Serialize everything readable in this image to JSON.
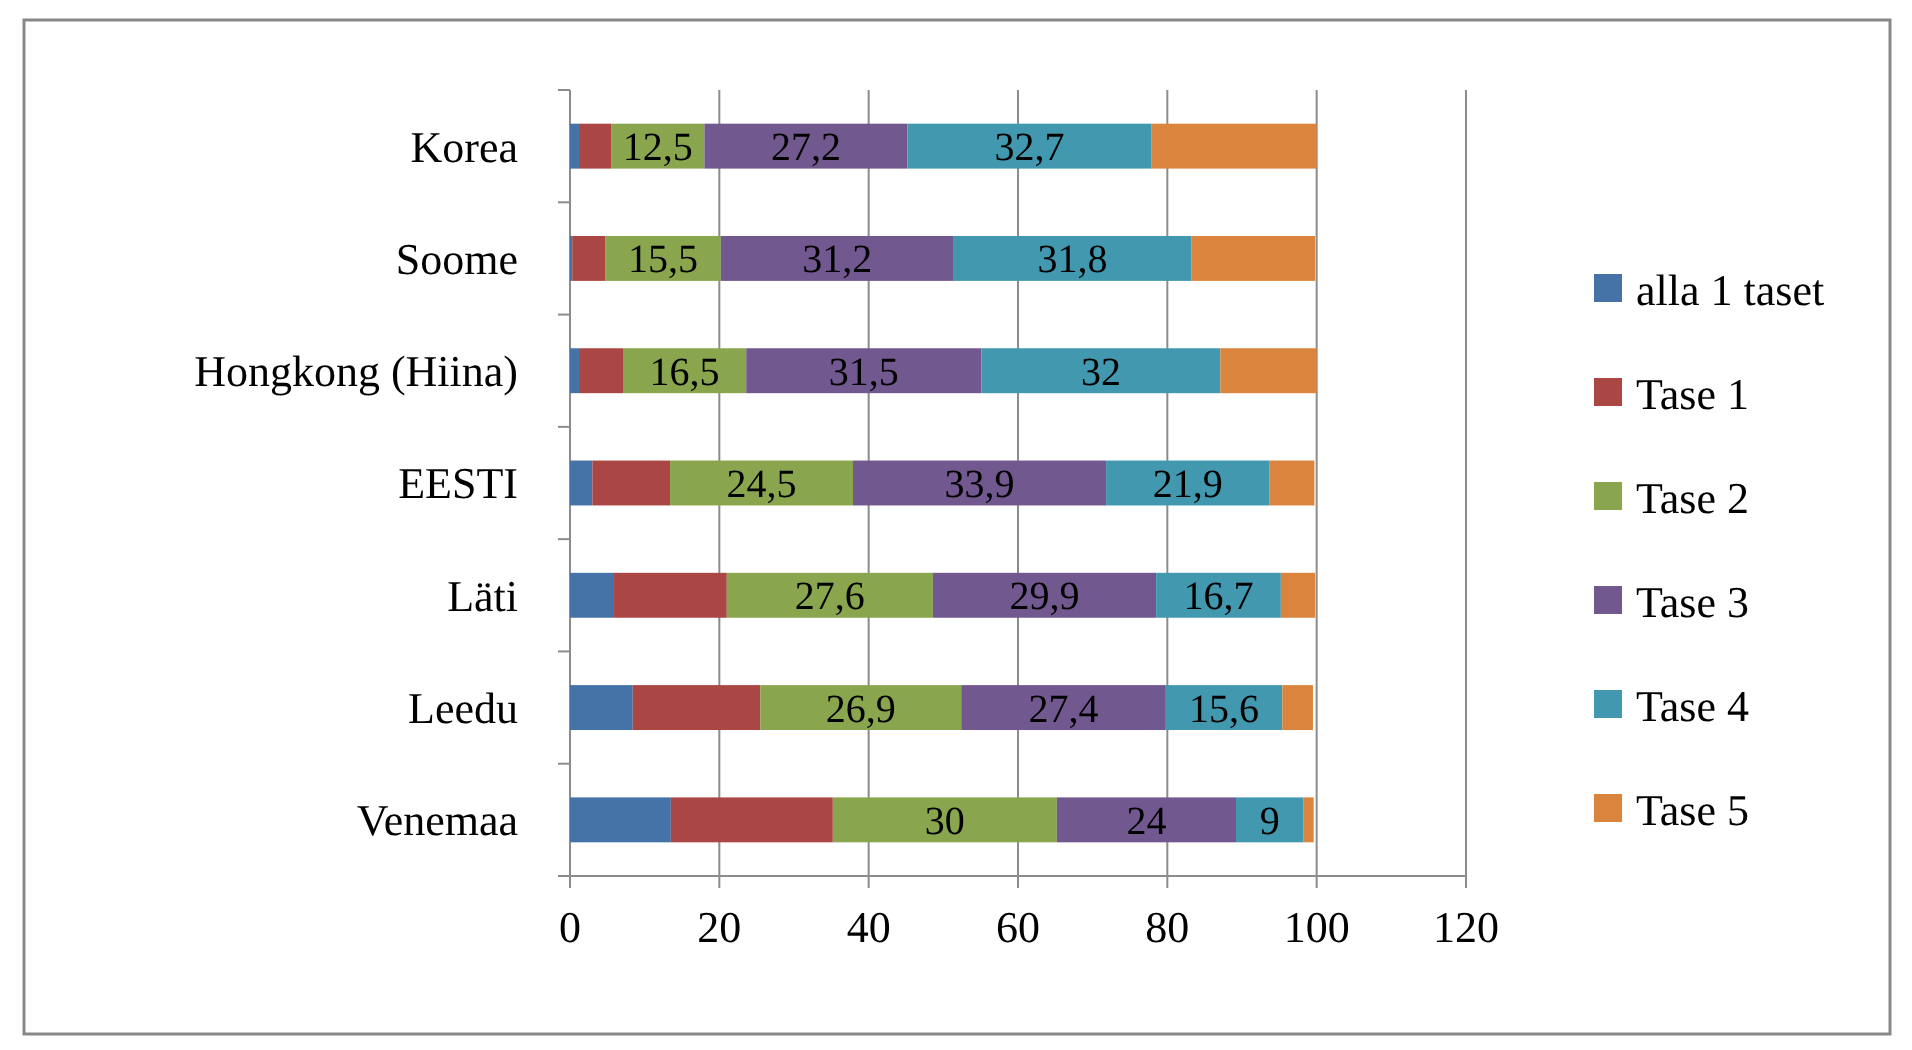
{
  "chart_data": {
    "type": "bar",
    "orientation": "horizontal",
    "stacked": true,
    "categories": [
      "Korea",
      "Soome",
      "Hongkong (Hiina)",
      "EESTI",
      "Läti",
      "Leedu",
      "Venemaa"
    ],
    "series": [
      {
        "name": "alla 1 taset",
        "color": "#4572a7",
        "values": [
          1.2,
          0.3,
          1.2,
          3.0,
          5.9,
          8.4,
          13.5
        ]
      },
      {
        "name": "Tase 1",
        "color": "#aa4643",
        "values": [
          4.3,
          4.4,
          5.9,
          10.4,
          15.1,
          17.1,
          21.7
        ]
      },
      {
        "name": "Tase 2",
        "color": "#89a54e",
        "values": [
          12.5,
          15.5,
          16.5,
          24.5,
          27.6,
          26.9,
          30
        ],
        "value_labels": [
          "12,5",
          "15,5",
          "16,5",
          "24,5",
          "27,6",
          "26,9",
          "30"
        ]
      },
      {
        "name": "Tase 3",
        "color": "#71588f",
        "values": [
          27.2,
          31.2,
          31.5,
          33.9,
          29.9,
          27.4,
          24
        ],
        "value_labels": [
          "27,2",
          "31,2",
          "31,5",
          "33,9",
          "29,9",
          "27,4",
          "24"
        ]
      },
      {
        "name": "Tase 4",
        "color": "#4198af",
        "values": [
          32.7,
          31.8,
          32,
          21.9,
          16.7,
          15.6,
          9
        ],
        "value_labels": [
          "32,7",
          "31,8",
          "32",
          "21,9",
          "16,7",
          "15,6",
          "9"
        ]
      },
      {
        "name": "Tase 5",
        "color": "#db843d",
        "values": [
          22.1,
          16.6,
          12.9,
          6.0,
          4.6,
          4.1,
          1.4
        ]
      }
    ],
    "xlim": [
      0,
      120
    ],
    "xticks": [
      0,
      20,
      40,
      60,
      80,
      100,
      120
    ],
    "grid": "x",
    "legend": "right"
  }
}
